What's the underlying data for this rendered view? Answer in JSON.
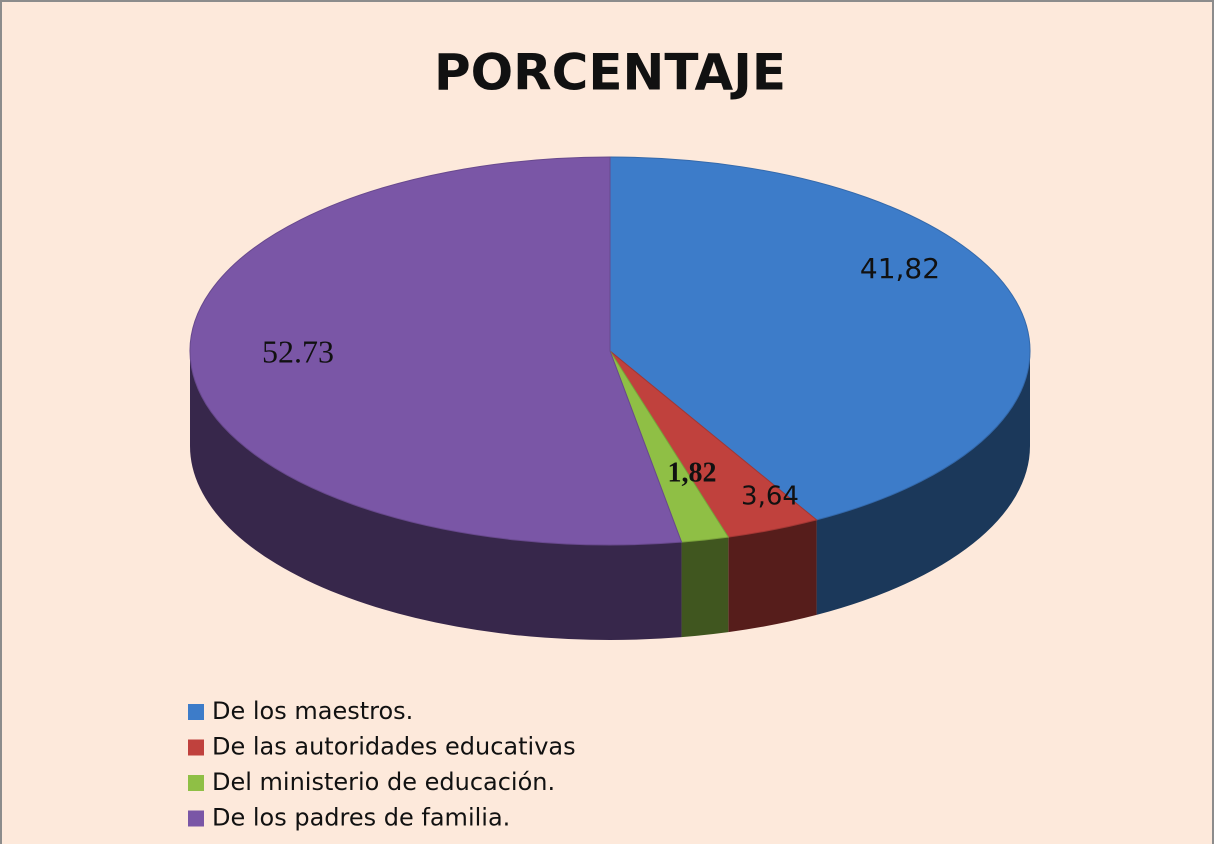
{
  "chart_data": {
    "type": "pie",
    "title": "PORCENTAJE",
    "categories": [
      "De los maestros.",
      "De las autoridades educativas",
      "Del ministerio de educación.",
      "De los padres de familia."
    ],
    "values": [
      41.82,
      3.64,
      1.82,
      52.73
    ],
    "value_labels": [
      "41,82",
      "3,64",
      "1,82",
      "52.73"
    ],
    "colors": [
      "#3d7cc9",
      "#c0413d",
      "#8fbf45",
      "#7a56a6"
    ],
    "legend": "bottom-left"
  }
}
